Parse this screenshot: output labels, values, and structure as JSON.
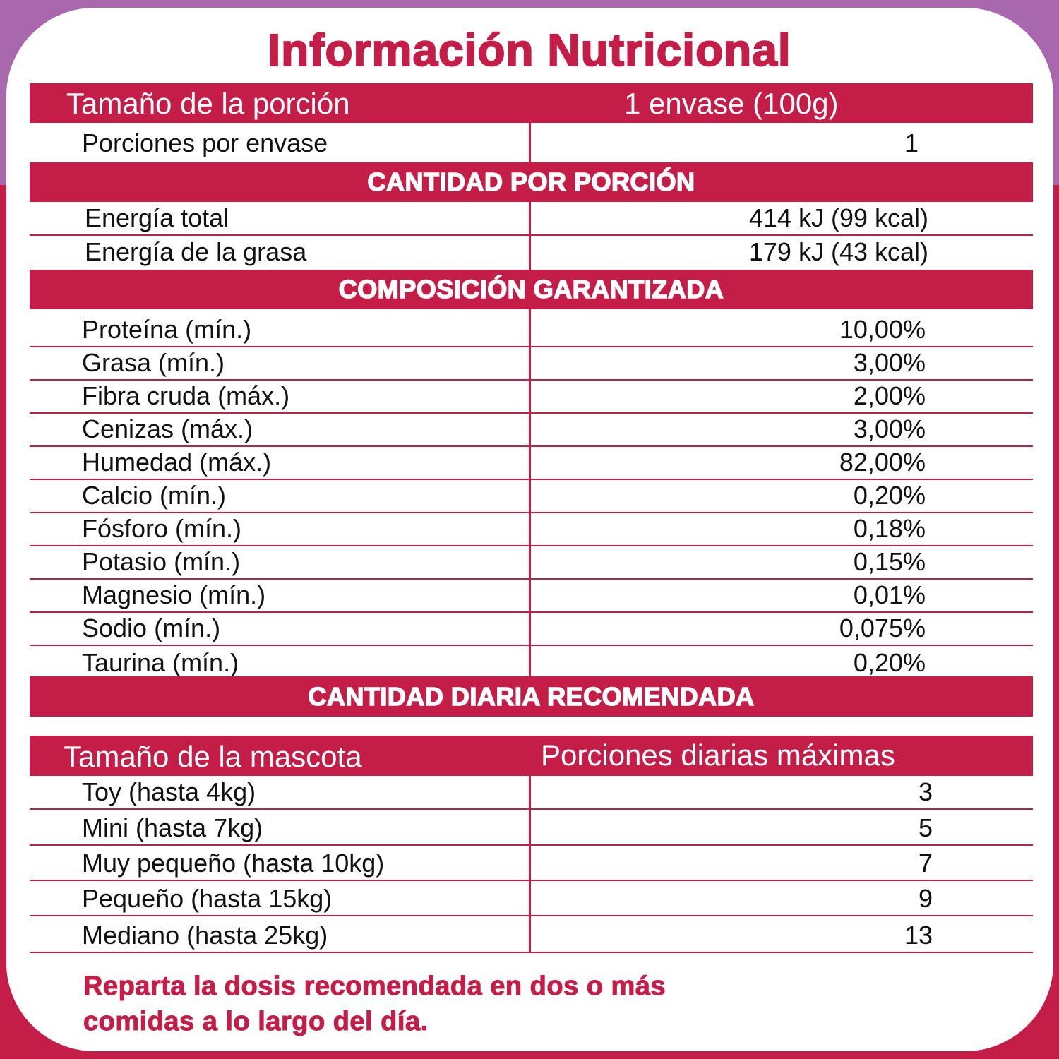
{
  "title": "Información Nutricional",
  "serving": {
    "label": "Tamaño de la porción",
    "value": "1 envase (100g)",
    "per_container_label": "Porciones por envase",
    "per_container_value": "1"
  },
  "section_amount": "CANTIDAD POR PORCIÓN",
  "energy": [
    {
      "label": "Energía total",
      "value": "414 kJ (99 kcal)"
    },
    {
      "label": "Energía de la grasa",
      "value": "179 kJ (43 kcal)"
    }
  ],
  "section_composition": "COMPOSICIÓN GARANTIZADA",
  "composition": [
    {
      "label": "Proteína (mín.)",
      "value": "10,00%"
    },
    {
      "label": "Grasa (mín.)",
      "value": "3,00%"
    },
    {
      "label": "Fibra cruda (máx.)",
      "value": "2,00%"
    },
    {
      "label": "Cenizas (máx.)",
      "value": "3,00%"
    },
    {
      "label": "Humedad (máx.)",
      "value": "82,00%"
    },
    {
      "label": "Calcio (mín.)",
      "value": "0,20%"
    },
    {
      "label": "Fósforo (mín.)",
      "value": "0,18%"
    },
    {
      "label": "Potasio (mín.)",
      "value": "0,15%"
    },
    {
      "label": "Magnesio (mín.)",
      "value": "0,01%"
    },
    {
      "label": "Sodio (mín.)",
      "value": "0,075%"
    },
    {
      "label": "Taurina (mín.)",
      "value": "0,20%"
    }
  ],
  "section_daily": "CANTIDAD DIARIA RECOMENDADA",
  "daily_header": {
    "left": "Tamaño de la mascota",
    "right": "Porciones diarias máximas"
  },
  "daily": [
    {
      "label": "Toy (hasta 4kg)",
      "value": "3"
    },
    {
      "label": "Mini (hasta 7kg)",
      "value": "5"
    },
    {
      "label": "Muy pequeño (hasta 10kg)",
      "value": "7"
    },
    {
      "label": "Pequeño (hasta 15kg)",
      "value": "9"
    },
    {
      "label": "Mediano (hasta 25kg)",
      "value": "13"
    }
  ],
  "footer": [
    "Reparta la dosis recomendada en dos o más",
    "comidas a lo largo del día."
  ],
  "colors": {
    "accent": "#c41e48",
    "background_top": "#a967ad"
  }
}
